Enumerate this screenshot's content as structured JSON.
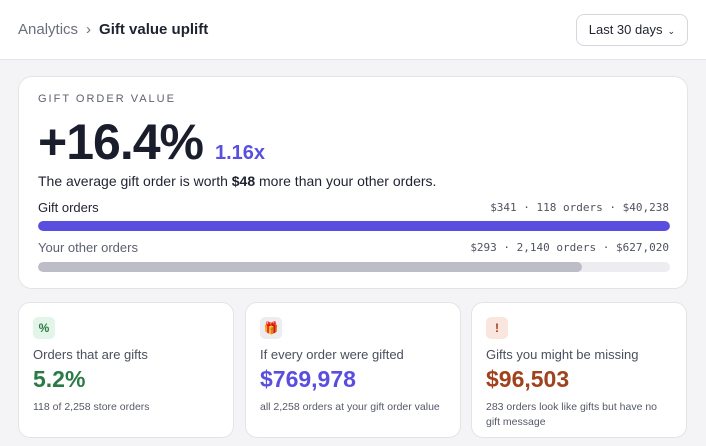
{
  "header": {
    "breadcrumb_root": "Analytics",
    "breadcrumb_separator": "›",
    "breadcrumb_current": "Gift value uplift",
    "range_label": "Last 30 days",
    "range_chevron": "⌄"
  },
  "summary": {
    "eyebrow": "GIFT ORDER VALUE",
    "headline": "+16.4%",
    "multiplier": "1.16x",
    "sentence_prefix": "The average gift order is worth ",
    "sentence_amount": "$48",
    "sentence_suffix": " more than your other orders.",
    "rows": [
      {
        "label": "Gift orders",
        "stats": "$341 · 118 orders · $40,238",
        "fill_fraction": 1.0,
        "color": "#5a4ee0"
      },
      {
        "label": "Your other orders",
        "stats": "$293 · 2,140 orders · $627,020",
        "fill_fraction": 0.86,
        "color": "#bcbdc6"
      }
    ]
  },
  "cards": [
    {
      "badge": "%",
      "badge_bg": "#e3f4e8",
      "badge_color": "#2b7a45",
      "label": "Orders that are gifts",
      "value": "5.2%",
      "value_color": "#2b7a45",
      "note": "118 of 2,258 store orders"
    },
    {
      "badge": "🎁",
      "badge_bg": "#ececf1",
      "badge_color": "#c0392b",
      "label": "If every order were gifted",
      "value": "$769,978",
      "value_color": "#5a4ee0",
      "note": "all 2,258 orders at your gift order value"
    },
    {
      "badge": "!",
      "badge_bg": "#fbe6df",
      "badge_color": "#a0421c",
      "label": "Gifts you might be missing",
      "value": "$96,503",
      "value_color": "#a0421c",
      "note": "283 orders look like gifts but have no gift message"
    }
  ]
}
